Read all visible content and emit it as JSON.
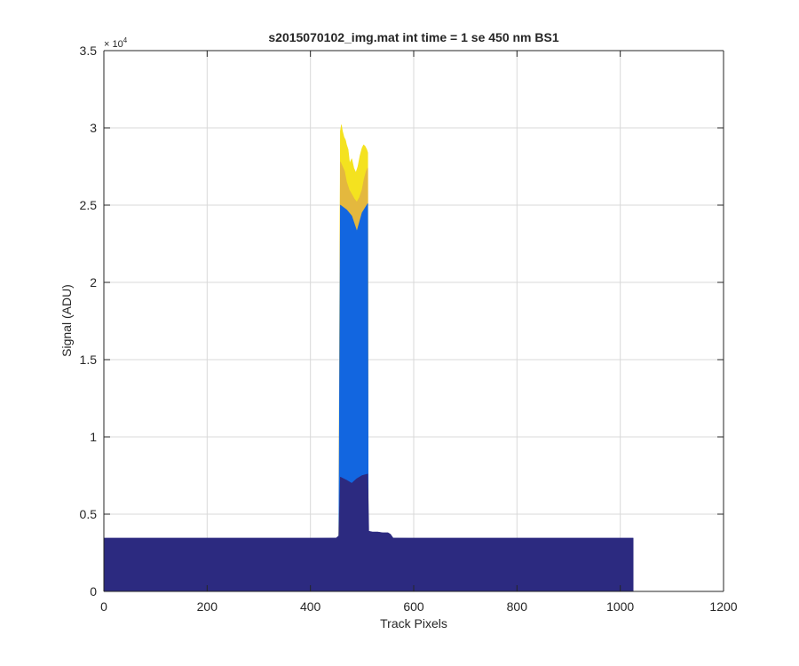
{
  "chart_data": {
    "type": "area",
    "title": "s2015070102_img.mat int time = 1 se  450 nm BS1",
    "xlabel": "Track Pixels",
    "ylabel": "Signal (ADU)",
    "xlim": [
      0,
      1200
    ],
    "ylim": [
      0,
      35000
    ],
    "xticks": [
      0,
      200,
      400,
      600,
      800,
      1000,
      1200
    ],
    "xtick_labels": [
      "0",
      "200",
      "400",
      "600",
      "800",
      "1000",
      "1200"
    ],
    "yticks": [
      0,
      5000,
      10000,
      15000,
      20000,
      25000,
      30000,
      35000
    ],
    "ytick_labels": [
      "0",
      "0.5",
      "1",
      "1.5",
      "2",
      "2.5",
      "3",
      "3.5"
    ],
    "y_exponent_label": "× 10",
    "y_exponent_power": "4",
    "grid": true,
    "series": [
      {
        "color": "#f4e21f",
        "x": [
          455,
          458,
          460,
          462,
          465,
          468,
          470,
          473,
          476,
          480,
          484,
          488,
          492,
          496,
          500,
          503,
          506,
          509,
          511,
          512
        ],
        "values": [
          3500,
          29800,
          30200,
          29800,
          29400,
          29200,
          28900,
          28600,
          27700,
          28000,
          27400,
          27100,
          27500,
          28200,
          28700,
          28900,
          28800,
          28600,
          28400,
          3500
        ]
      },
      {
        "color": "#e4b83e",
        "x": [
          455,
          458,
          462,
          466,
          470,
          475,
          480,
          485,
          490,
          495,
          500,
          504,
          508,
          511,
          512
        ],
        "values": [
          3500,
          27800,
          27500,
          27200,
          26500,
          26000,
          25700,
          25400,
          25200,
          25500,
          26000,
          26700,
          27200,
          27400,
          3500
        ]
      },
      {
        "color": "#1266e0",
        "x": [
          455,
          458,
          470,
          480,
          490,
          500,
          511,
          512
        ],
        "values": [
          3500,
          25000,
          24700,
          24300,
          23300,
          24500,
          25100,
          3500
        ]
      },
      {
        "color": "#2c2a80",
        "x": [
          0,
          100,
          200,
          300,
          400,
          450,
          455,
          458,
          470,
          480,
          490,
          500,
          511,
          513,
          520,
          530,
          540,
          550,
          555,
          560,
          600,
          700,
          800,
          900,
          1000,
          1025
        ],
        "values": [
          3450,
          3450,
          3450,
          3450,
          3450,
          3460,
          3600,
          7400,
          7200,
          7000,
          7300,
          7500,
          7600,
          3900,
          3850,
          3850,
          3800,
          3800,
          3700,
          3460,
          3450,
          3450,
          3450,
          3450,
          3450,
          3450
        ]
      }
    ]
  },
  "colors": {
    "grid": "#d9d9d9",
    "axis": "#262626",
    "background": "#ffffff"
  }
}
